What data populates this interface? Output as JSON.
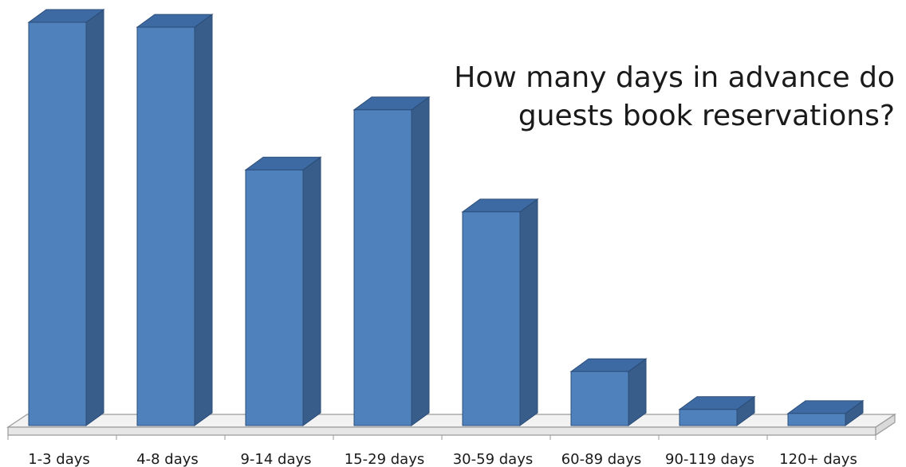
{
  "chart_data": {
    "type": "bar",
    "title": "How many days in advance do guests book reservations?",
    "categories": [
      "1-3 days",
      "4-8 days",
      "9-14 days",
      "15-29 days",
      "30-59 days",
      "60-89 days",
      "90-119 days",
      "120+ days"
    ],
    "values": [
      100,
      98.8,
      63.4,
      78.3,
      53,
      13.4,
      4,
      3
    ],
    "ylim": [
      0,
      100
    ],
    "xlabel": "",
    "ylabel": "",
    "grid": false,
    "three_d": true,
    "colors": {
      "bar_front": "#4f81bd",
      "bar_side": "#385d8a",
      "bar_top": "#3e6aa3",
      "bar_outline": "#2c4d78",
      "floor_fill": "#f2f2f2",
      "floor_outline": "#9a9a9a",
      "text": "#1a1a1a"
    }
  }
}
